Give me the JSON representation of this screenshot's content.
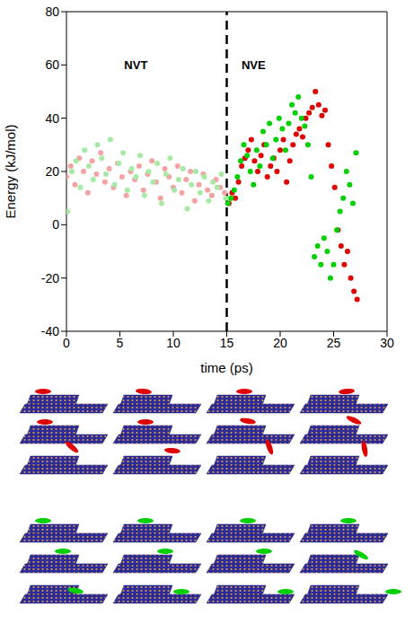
{
  "chart_data": {
    "type": "scatter",
    "xlabel": "time (ps)",
    "ylabel": "Energy (kJ/mol)",
    "xlim": [
      0,
      30
    ],
    "xticks": [
      0,
      5,
      10,
      15,
      20,
      25,
      30
    ],
    "ylim": [
      -40,
      80
    ],
    "yticks": [
      -40,
      -20,
      0,
      20,
      40,
      60,
      80
    ],
    "grid": false,
    "annotations": [
      {
        "text": "NVT",
        "x": 6.5,
        "y": 60
      },
      {
        "text": "NVE",
        "x": 17.5,
        "y": 60
      }
    ],
    "reference_lines": [
      {
        "x": 15,
        "line_style": "dashed"
      }
    ],
    "series": [
      {
        "color": "#f4a3a3",
        "marker": "circle",
        "x": [
          0,
          0.4,
          0.8,
          1.2,
          1.6,
          2.0,
          2.4,
          2.8,
          3.2,
          3.6,
          4.0,
          4.4,
          4.8,
          5.2,
          5.6,
          6.0,
          6.4,
          6.8,
          7.2,
          7.6,
          8.0,
          8.4,
          8.8,
          9.2,
          9.6,
          10.0,
          10.4,
          10.8,
          11.2,
          11.6,
          12.0,
          12.4,
          12.8,
          13.2,
          13.6,
          14.0,
          14.4,
          14.8
        ],
        "values": [
          18,
          22,
          15,
          25,
          20,
          12,
          24,
          19,
          27,
          16,
          21,
          14,
          23,
          18,
          11,
          20,
          17,
          22,
          13,
          19,
          24,
          16,
          10,
          21,
          18,
          14,
          22,
          12,
          17,
          20,
          9,
          15,
          19,
          13,
          11,
          17,
          14,
          12
        ]
      },
      {
        "color": "#a6eaa6",
        "marker": "circle",
        "x": [
          0.1,
          0.5,
          0.9,
          1.3,
          1.7,
          2.1,
          2.5,
          2.9,
          3.3,
          3.7,
          4.1,
          4.5,
          4.9,
          5.3,
          5.7,
          6.1,
          6.5,
          6.9,
          7.3,
          7.7,
          8.1,
          8.5,
          8.9,
          9.3,
          9.7,
          10.1,
          10.5,
          10.9,
          11.3,
          11.7,
          12.1,
          12.5,
          12.9,
          13.3,
          13.7,
          14.1,
          14.5,
          14.9
        ],
        "values": [
          5,
          20,
          24,
          14,
          28,
          22,
          17,
          30,
          25,
          19,
          32,
          15,
          23,
          27,
          13,
          21,
          18,
          26,
          11,
          20,
          16,
          23,
          8,
          19,
          25,
          13,
          17,
          21,
          6,
          15,
          20,
          12,
          18,
          9,
          16,
          14,
          19,
          10
        ]
      },
      {
        "color": "#e00000",
        "marker": "circle",
        "x": [
          15.2,
          15.5,
          15.8,
          16.1,
          16.4,
          16.7,
          17.0,
          17.3,
          17.6,
          17.9,
          18.2,
          18.5,
          18.8,
          19.1,
          19.4,
          19.7,
          20.0,
          20.3,
          20.6,
          20.9,
          21.2,
          21.5,
          21.8,
          22.1,
          22.4,
          22.7,
          23.0,
          23.3,
          23.6,
          23.9,
          24.2,
          24.5,
          24.8,
          25.1,
          25.4,
          25.7,
          26.0,
          26.3,
          26.6,
          26.9,
          27.2
        ],
        "values": [
          8,
          12,
          10,
          16,
          22,
          25,
          28,
          32,
          24,
          20,
          26,
          30,
          18,
          22,
          25,
          20,
          28,
          32,
          16,
          24,
          30,
          34,
          36,
          33,
          40,
          42,
          44,
          50,
          45,
          41,
          43,
          30,
          22,
          14,
          -2,
          -8,
          -15,
          -10,
          -20,
          -25,
          -28
        ]
      },
      {
        "color": "#00d000",
        "marker": "circle",
        "x": [
          15.1,
          15.4,
          15.7,
          16.0,
          16.3,
          16.6,
          16.9,
          17.2,
          17.5,
          17.8,
          18.1,
          18.4,
          18.7,
          19.0,
          19.3,
          19.6,
          19.9,
          20.2,
          20.5,
          20.8,
          21.1,
          21.4,
          21.7,
          22.0,
          22.3,
          22.6,
          22.9,
          23.2,
          23.5,
          23.8,
          24.1,
          24.4,
          24.7,
          25.0,
          25.3,
          25.6,
          25.9,
          26.2,
          26.5,
          26.8,
          27.1
        ],
        "values": [
          8,
          10,
          13,
          18,
          24,
          30,
          26,
          20,
          15,
          28,
          22,
          35,
          30,
          38,
          25,
          32,
          40,
          36,
          28,
          38,
          45,
          42,
          48,
          40,
          37,
          30,
          18,
          -12,
          -8,
          -15,
          -5,
          -10,
          -20,
          -15,
          -2,
          5,
          10,
          20,
          15,
          8,
          27
        ]
      }
    ]
  }
}
